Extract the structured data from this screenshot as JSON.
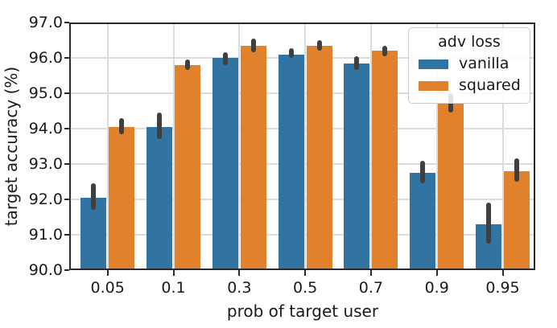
{
  "figure": {
    "xlabel": "prob of target user",
    "ylabel": "target accuracy (%)"
  },
  "legend": {
    "title": "adv loss",
    "entries": [
      {
        "label": "vanilla",
        "color": "#3274a1"
      },
      {
        "label": "squared",
        "color": "#e1812c"
      }
    ],
    "position": "upper right"
  },
  "chart_data": {
    "type": "bar",
    "title": "",
    "xlabel": "prob of target user",
    "ylabel": "target accuracy (%)",
    "categories": [
      "0.05",
      "0.1",
      "0.3",
      "0.5",
      "0.7",
      "0.9",
      "0.95"
    ],
    "series": [
      {
        "name": "vanilla",
        "color": "#3274a1",
        "values": [
          92.05,
          94.05,
          96.0,
          96.1,
          95.85,
          92.75,
          91.3
        ],
        "err_low": [
          91.7,
          93.7,
          95.8,
          96.0,
          95.65,
          92.45,
          90.75
        ],
        "err_high": [
          92.45,
          94.45,
          96.15,
          96.27,
          96.05,
          93.1,
          91.9
        ]
      },
      {
        "name": "squared",
        "color": "#e1812c",
        "values": [
          94.05,
          95.8,
          96.35,
          96.35,
          96.2,
          94.7,
          92.8
        ],
        "err_low": [
          93.85,
          95.65,
          96.15,
          96.2,
          96.05,
          94.45,
          92.5
        ],
        "err_high": [
          94.3,
          95.95,
          96.55,
          96.5,
          96.35,
          95.0,
          93.15
        ]
      }
    ],
    "ylim": [
      90.0,
      97.0
    ],
    "yticks": [
      "90.0",
      "91.0",
      "92.0",
      "93.0",
      "94.0",
      "95.0",
      "96.0",
      "97.0"
    ],
    "grid": true,
    "error_bars": true,
    "legend_title": "adv loss",
    "legend_position": "upper right"
  },
  "style": {
    "grid_color": "#dcdcdc",
    "spine_color": "#2a2a2a",
    "tick_color": "#2a2a2a",
    "error_bar_color": "#3f3f3f",
    "text_color": "#1a1a1a",
    "background": "#ffffff"
  }
}
